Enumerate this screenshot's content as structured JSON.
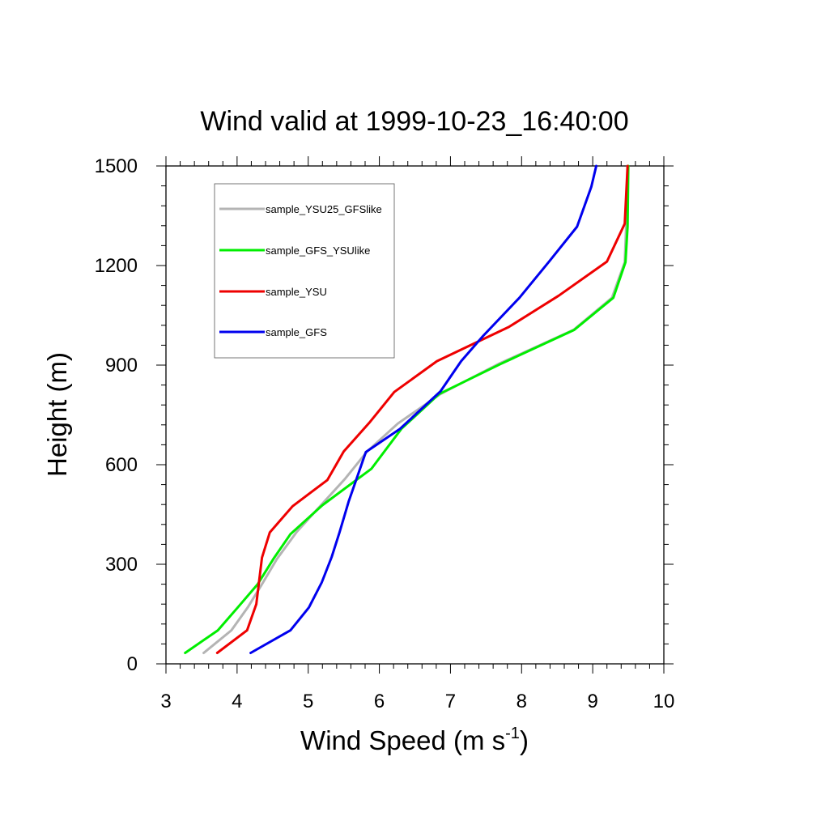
{
  "chart_data": {
    "type": "line",
    "title": "Wind valid at 1999-10-23_16:40:00",
    "xlabel": "Wind Speed (m s",
    "xlabel_sup": "-1",
    "xlabel_close": ")",
    "ylabel": "Height (m)",
    "xlim": [
      3,
      10
    ],
    "ylim": [
      0,
      1500
    ],
    "xticks": [
      3,
      4,
      5,
      6,
      7,
      8,
      9,
      10
    ],
    "yticks": [
      0,
      300,
      600,
      900,
      1200,
      1500
    ],
    "grid": false,
    "legend_position": "top-left",
    "series": [
      {
        "name": "sample_YSU25_GFSlike",
        "color": "#b4b4b4",
        "points": [
          [
            3.53,
            33
          ],
          [
            3.92,
            101
          ],
          [
            4.15,
            170
          ],
          [
            4.35,
            240
          ],
          [
            4.56,
            316
          ],
          [
            4.84,
            398
          ],
          [
            5.18,
            478
          ],
          [
            5.52,
            558
          ],
          [
            5.83,
            640
          ],
          [
            6.26,
            724
          ],
          [
            6.86,
            813
          ],
          [
            7.67,
            903
          ],
          [
            8.73,
            1006
          ],
          [
            9.27,
            1103
          ],
          [
            9.45,
            1210
          ],
          [
            9.47,
            1317
          ],
          [
            9.49,
            1500
          ]
        ]
      },
      {
        "name": "sample_GFS_YSUlike",
        "color": "#00ee00",
        "points": [
          [
            3.27,
            33
          ],
          [
            3.73,
            101
          ],
          [
            4.01,
            170
          ],
          [
            4.29,
            240
          ],
          [
            4.51,
            316
          ],
          [
            4.75,
            391
          ],
          [
            5.2,
            478
          ],
          [
            5.89,
            588
          ],
          [
            6.31,
            708
          ],
          [
            6.84,
            813
          ],
          [
            7.7,
            903
          ],
          [
            8.74,
            1006
          ],
          [
            9.29,
            1103
          ],
          [
            9.46,
            1210
          ],
          [
            9.49,
            1317
          ],
          [
            9.5,
            1500
          ]
        ]
      },
      {
        "name": "sample_YSU",
        "color": "#ee0000",
        "points": [
          [
            3.72,
            33
          ],
          [
            4.14,
            101
          ],
          [
            4.27,
            180
          ],
          [
            4.35,
            320
          ],
          [
            4.46,
            396
          ],
          [
            4.78,
            475
          ],
          [
            5.27,
            554
          ],
          [
            5.5,
            640
          ],
          [
            5.87,
            729
          ],
          [
            6.21,
            819
          ],
          [
            6.81,
            912
          ],
          [
            7.82,
            1015
          ],
          [
            8.52,
            1109
          ],
          [
            9.2,
            1212
          ],
          [
            9.45,
            1326
          ],
          [
            9.49,
            1500
          ]
        ]
      },
      {
        "name": "sample_GFS",
        "color": "#0000ee",
        "points": [
          [
            4.19,
            33
          ],
          [
            4.75,
            101
          ],
          [
            5.01,
            170
          ],
          [
            5.19,
            245
          ],
          [
            5.33,
            322
          ],
          [
            5.44,
            396
          ],
          [
            5.57,
            490
          ],
          [
            5.81,
            638
          ],
          [
            6.29,
            708
          ],
          [
            6.86,
            821
          ],
          [
            7.15,
            912
          ],
          [
            7.46,
            988
          ],
          [
            7.97,
            1103
          ],
          [
            8.39,
            1213
          ],
          [
            8.78,
            1317
          ],
          [
            8.98,
            1437
          ],
          [
            9.05,
            1500
          ]
        ]
      }
    ]
  }
}
